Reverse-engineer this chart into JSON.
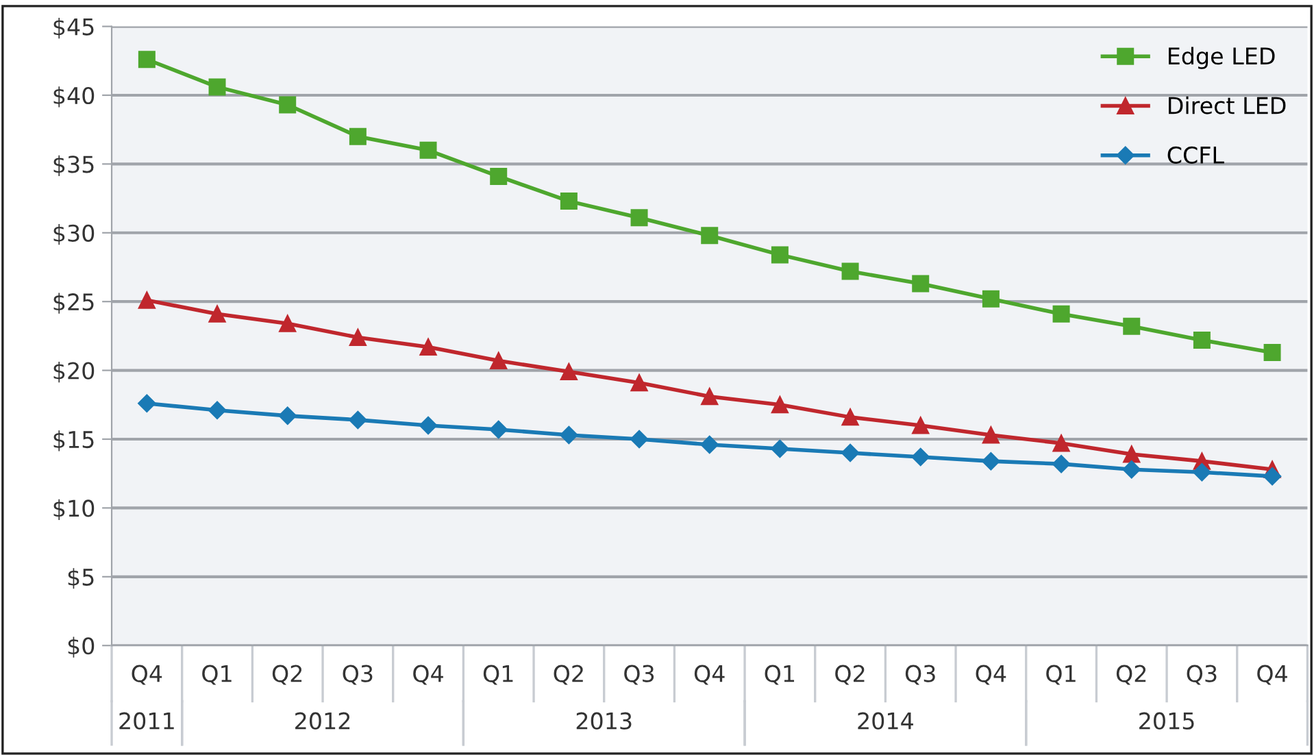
{
  "chart_data": {
    "type": "line",
    "categories": [
      "Q4",
      "Q1",
      "Q2",
      "Q3",
      "Q4",
      "Q1",
      "Q2",
      "Q3",
      "Q4",
      "Q1",
      "Q2",
      "Q3",
      "Q4",
      "Q1",
      "Q2",
      "Q3",
      "Q4"
    ],
    "series": [
      {
        "name": "Edge LED",
        "color": "#4ea72e",
        "marker": "square",
        "values": [
          42.6,
          40.6,
          39.3,
          37.0,
          36.0,
          34.1,
          32.3,
          31.1,
          29.8,
          28.4,
          27.2,
          26.3,
          25.2,
          24.1,
          23.2,
          22.2,
          21.3
        ]
      },
      {
        "name": "Direct LED",
        "color": "#c0272d",
        "marker": "triangle",
        "values": [
          25.1,
          24.1,
          23.4,
          22.4,
          21.7,
          20.7,
          19.9,
          19.1,
          18.1,
          17.5,
          16.6,
          16.0,
          15.3,
          14.7,
          13.9,
          13.4,
          12.8
        ]
      },
      {
        "name": "CCFL",
        "color": "#1a7ab5",
        "marker": "diamond",
        "values": [
          17.6,
          17.1,
          16.7,
          16.4,
          16.0,
          15.7,
          15.3,
          15.0,
          14.6,
          14.3,
          14.0,
          13.7,
          13.4,
          13.2,
          12.8,
          12.6,
          12.3
        ]
      }
    ],
    "annotations": [
      "2011",
      "2012",
      "2013",
      "2014",
      "2015"
    ],
    "ylim": [
      0,
      45
    ],
    "yticks": [
      {
        "value": 0,
        "label": "$0"
      },
      {
        "value": 5,
        "label": "$5"
      },
      {
        "value": 10,
        "label": "$10"
      },
      {
        "value": 15,
        "label": "$15"
      },
      {
        "value": 20,
        "label": "$20"
      },
      {
        "value": 25,
        "label": "$25"
      },
      {
        "value": 30,
        "label": "$30"
      },
      {
        "value": 35,
        "label": "$35"
      },
      {
        "value": 40,
        "label": "$40"
      },
      {
        "value": 45,
        "label": "$45"
      }
    ],
    "grid": "y",
    "legend": "top right",
    "line_style": "solid"
  }
}
